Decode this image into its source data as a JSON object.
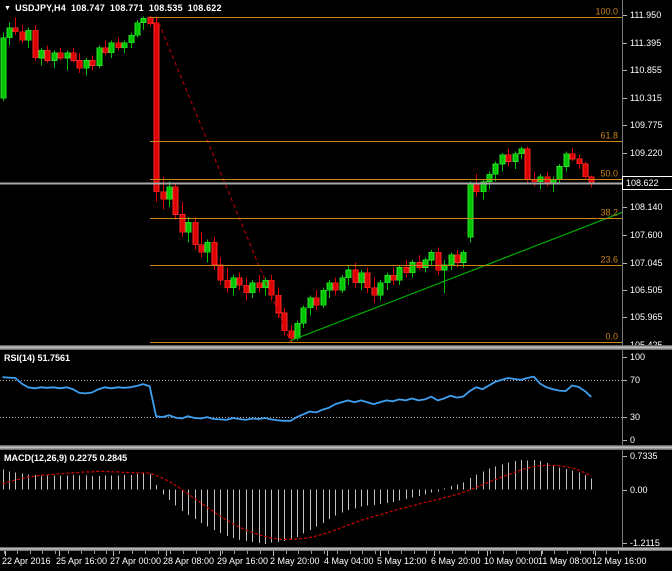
{
  "window": {
    "title": {
      "symbol_period": "USDJPY,H4",
      "open": "108.747",
      "high": "108.771",
      "low": "108.535",
      "close": "108.622"
    }
  },
  "price_scale": {
    "ticks": [
      "111.950",
      "111.395",
      "110.855",
      "110.315",
      "109.775",
      "109.220",
      "108.140",
      "107.600",
      "107.045",
      "106.505",
      "105.965",
      "105.425"
    ],
    "current_price": "108.622"
  },
  "time_scale": {
    "labels": [
      "22 Apr 2016",
      "25 Apr 16:00",
      "27 Apr 00:00",
      "28 Apr 08:00",
      "29 Apr 16:00",
      "2 May 20:00",
      "4 May 04:00",
      "5 May 12:00",
      "6 May 20:00",
      "10 May 00:00",
      "11 May 08:00",
      "12 May 16:00"
    ]
  },
  "panels": {
    "rsi": {
      "label": "RSI(14)",
      "value": "51.7561",
      "scale_ticks": [
        "100",
        "70",
        "30",
        "0"
      ],
      "level_lines": [
        70,
        30
      ]
    },
    "macd": {
      "label": "MACD(12,26,9)",
      "value_main": "0.2275",
      "value_signal": "0.2845",
      "scale_ticks": [
        "0.7335",
        "0.00",
        "-1.2115"
      ]
    }
  },
  "colors": {
    "background": "#000000",
    "bull": "#00c400",
    "bull_edge": "#2ee62e",
    "bear": "#dd0000",
    "bear_edge": "#ff2a2a",
    "fib": "#c8861b",
    "rsi_line": "#3f9ff0",
    "macd_histogram": "#c2c2c2",
    "macd_signal": "#d40000",
    "trendline": "#00a800",
    "bid_line": "#a8a8a8",
    "level_dotted": "#b0b0b0",
    "axis_text": "#ffffff"
  },
  "chart_data": {
    "type": "candlestick",
    "symbol": "USDJPY",
    "timeframe": "H4",
    "title": "USDJPY,H4 108.747 108.771 108.535 108.622",
    "y_range": [
      105.425,
      111.95
    ],
    "x_labels": [
      "22 Apr 2016",
      "25 Apr 16:00",
      "27 Apr 00:00",
      "28 Apr 08:00",
      "29 Apr 16:00",
      "2 May 20:00",
      "4 May 04:00",
      "5 May 12:00",
      "6 May 20:00",
      "10 May 00:00",
      "11 May 08:00",
      "12 May 16:00"
    ],
    "candles_ohlc": [
      [
        110.3,
        111.6,
        110.25,
        111.5
      ],
      [
        111.5,
        111.8,
        111.35,
        111.7
      ],
      [
        111.7,
        111.9,
        111.55,
        111.62
      ],
      [
        111.62,
        111.75,
        111.4,
        111.45
      ],
      [
        111.45,
        111.7,
        111.3,
        111.65
      ],
      [
        111.65,
        111.75,
        111.05,
        111.1
      ],
      [
        111.1,
        111.3,
        110.95,
        111.25
      ],
      [
        111.25,
        111.35,
        111.0,
        111.05
      ],
      [
        111.05,
        111.25,
        110.9,
        111.2
      ],
      [
        111.2,
        111.3,
        111.05,
        111.1
      ],
      [
        111.1,
        111.25,
        110.85,
        111.2
      ],
      [
        111.2,
        111.3,
        111.0,
        111.05
      ],
      [
        111.05,
        111.2,
        110.8,
        110.9
      ],
      [
        110.9,
        111.1,
        110.75,
        111.05
      ],
      [
        111.05,
        111.15,
        110.85,
        110.95
      ],
      [
        110.95,
        111.35,
        110.9,
        111.3
      ],
      [
        111.3,
        111.45,
        111.15,
        111.2
      ],
      [
        111.2,
        111.45,
        111.1,
        111.4
      ],
      [
        111.4,
        111.5,
        111.25,
        111.3
      ],
      [
        111.3,
        111.45,
        111.2,
        111.4
      ],
      [
        111.4,
        111.6,
        111.3,
        111.55
      ],
      [
        111.55,
        111.85,
        111.5,
        111.8
      ],
      [
        111.8,
        111.92,
        111.65,
        111.88
      ],
      [
        111.9,
        111.93,
        111.72,
        111.78
      ],
      [
        111.8,
        111.92,
        108.25,
        108.45
      ],
      [
        108.45,
        108.75,
        108.1,
        108.3
      ],
      [
        108.3,
        108.65,
        108.15,
        108.55
      ],
      [
        108.55,
        108.6,
        107.9,
        108.0
      ],
      [
        108.0,
        108.25,
        107.55,
        107.65
      ],
      [
        107.65,
        107.95,
        107.45,
        107.85
      ],
      [
        107.85,
        107.95,
        107.3,
        107.4
      ],
      [
        107.4,
        107.65,
        107.15,
        107.25
      ],
      [
        107.25,
        107.5,
        107.05,
        107.45
      ],
      [
        107.45,
        107.55,
        106.9,
        107.0
      ],
      [
        107.0,
        107.15,
        106.6,
        106.7
      ],
      [
        106.7,
        106.95,
        106.45,
        106.55
      ],
      [
        106.55,
        106.8,
        106.4,
        106.75
      ],
      [
        106.75,
        106.85,
        106.5,
        106.6
      ],
      [
        106.6,
        106.75,
        106.3,
        106.45
      ],
      [
        106.45,
        106.7,
        106.35,
        106.65
      ],
      [
        106.65,
        106.8,
        106.45,
        106.55
      ],
      [
        106.55,
        106.75,
        106.4,
        106.7
      ],
      [
        106.7,
        106.8,
        106.3,
        106.4
      ],
      [
        106.4,
        106.55,
        105.95,
        106.05
      ],
      [
        106.05,
        106.15,
        105.6,
        105.7
      ],
      [
        105.7,
        105.8,
        105.47,
        105.55
      ],
      [
        105.55,
        105.9,
        105.5,
        105.85
      ],
      [
        105.85,
        106.2,
        105.75,
        106.15
      ],
      [
        106.15,
        106.4,
        106.0,
        106.35
      ],
      [
        106.35,
        106.5,
        106.1,
        106.2
      ],
      [
        106.2,
        106.55,
        106.15,
        106.5
      ],
      [
        106.5,
        106.7,
        106.35,
        106.65
      ],
      [
        106.65,
        106.75,
        106.4,
        106.5
      ],
      [
        106.5,
        106.8,
        106.45,
        106.75
      ],
      [
        106.75,
        107.0,
        106.6,
        106.9
      ],
      [
        106.9,
        107.05,
        106.55,
        106.65
      ],
      [
        106.65,
        106.9,
        106.5,
        106.85
      ],
      [
        106.85,
        106.95,
        106.45,
        106.55
      ],
      [
        106.55,
        106.75,
        106.25,
        106.4
      ],
      [
        106.4,
        106.7,
        106.3,
        106.65
      ],
      [
        106.65,
        106.85,
        106.5,
        106.8
      ],
      [
        106.8,
        106.95,
        106.6,
        106.7
      ],
      [
        106.7,
        107.0,
        106.6,
        106.95
      ],
      [
        106.95,
        107.1,
        106.75,
        106.85
      ],
      [
        106.85,
        107.1,
        106.75,
        107.05
      ],
      [
        107.05,
        107.2,
        106.9,
        106.95
      ],
      [
        106.95,
        107.15,
        106.85,
        107.1
      ],
      [
        107.1,
        107.3,
        107.0,
        107.25
      ],
      [
        107.25,
        107.35,
        106.8,
        106.9
      ],
      [
        106.9,
        107.1,
        106.45,
        107.0
      ],
      [
        107.0,
        107.25,
        106.9,
        107.2
      ],
      [
        107.2,
        107.3,
        106.95,
        107.05
      ],
      [
        107.05,
        107.3,
        106.95,
        107.25
      ],
      [
        107.55,
        108.65,
        107.45,
        108.6
      ],
      [
        108.6,
        108.8,
        108.35,
        108.45
      ],
      [
        108.45,
        108.7,
        108.3,
        108.65
      ],
      [
        108.65,
        108.85,
        108.5,
        108.8
      ],
      [
        108.8,
        109.05,
        108.65,
        109.0
      ],
      [
        109.0,
        109.22,
        108.85,
        109.18
      ],
      [
        109.18,
        109.3,
        108.95,
        109.05
      ],
      [
        109.05,
        109.25,
        108.9,
        109.2
      ],
      [
        109.2,
        109.35,
        109.1,
        109.3
      ],
      [
        109.3,
        109.35,
        108.6,
        108.7
      ],
      [
        108.7,
        108.85,
        108.55,
        108.65
      ],
      [
        108.65,
        108.8,
        108.5,
        108.75
      ],
      [
        108.75,
        108.85,
        108.55,
        108.6
      ],
      [
        108.6,
        108.75,
        108.45,
        108.7
      ],
      [
        108.7,
        109.0,
        108.6,
        108.95
      ],
      [
        108.95,
        109.25,
        108.85,
        109.2
      ],
      [
        109.2,
        109.32,
        109.05,
        109.1
      ],
      [
        109.1,
        109.18,
        108.9,
        109.0
      ],
      [
        109.0,
        109.05,
        108.7,
        108.75
      ],
      [
        108.747,
        108.771,
        108.535,
        108.622
      ]
    ],
    "fibonacci": {
      "high": 111.92,
      "low": 105.47,
      "levels": [
        {
          "pct": 100,
          "label": "100.0"
        },
        {
          "pct": 61.8,
          "label": "61.8"
        },
        {
          "pct": 50,
          "label": "50.0"
        },
        {
          "pct": 38.2,
          "label": "38.2"
        },
        {
          "pct": 23.6,
          "label": "23.6"
        },
        {
          "pct": 0,
          "label": "0.0"
        }
      ],
      "diagonal": {
        "from_bar": 24,
        "from_price": 111.92,
        "to_bar": 45,
        "to_price": 105.47
      }
    },
    "trendline": {
      "from_bar": 45,
      "from_price": 105.5,
      "to_bar": 97,
      "to_price": 108.05
    },
    "bid_line_price": 108.622,
    "indicators": {
      "rsi": {
        "period": 14,
        "last": 51.7561,
        "overbought": 70,
        "oversold": 30,
        "range": [
          0,
          100
        ],
        "values": [
          73,
          72.5,
          72,
          66,
          62,
          61,
          62,
          61.5,
          62,
          61,
          62,
          60,
          56,
          55.5,
          56.5,
          60,
          62,
          61,
          62,
          61.5,
          62,
          63.5,
          65.5,
          63,
          31,
          30,
          32,
          29.5,
          28.5,
          31,
          29,
          28.5,
          30,
          28,
          27.5,
          27,
          29,
          28,
          27,
          28.5,
          28,
          29,
          27.5,
          26.5,
          26,
          26,
          30,
          33,
          36,
          35,
          38,
          40,
          44,
          46,
          48,
          46,
          48,
          46,
          44,
          46,
          48,
          47,
          49,
          48,
          50,
          48,
          49,
          52,
          48,
          50,
          53,
          51,
          52,
          58,
          62,
          60,
          64,
          68,
          70,
          72,
          71,
          70,
          72,
          73.5,
          66,
          62,
          60,
          58.5,
          58,
          64,
          62.5,
          58,
          51.76
        ]
      },
      "macd": {
        "fast": 12,
        "slow": 26,
        "signal_period": 9,
        "last_main": 0.2275,
        "last_signal": 0.2845,
        "pane_range": [
          -1.2115,
          0.7335
        ],
        "histogram": [
          0.42,
          0.38,
          0.36,
          0.34,
          0.32,
          0.31,
          0.3,
          0.3,
          0.29,
          0.3,
          0.3,
          0.31,
          0.3,
          0.29,
          0.28,
          0.28,
          0.29,
          0.3,
          0.3,
          0.31,
          0.31,
          0.33,
          0.35,
          0.33,
          0.1,
          -0.1,
          -0.22,
          -0.34,
          -0.45,
          -0.54,
          -0.62,
          -0.7,
          -0.78,
          -0.85,
          -0.92,
          -0.98,
          -1.02,
          -1.06,
          -1.08,
          -1.1,
          -1.13,
          -1.15,
          -1.12,
          -1.1,
          -1.08,
          -1.05,
          -1.0,
          -0.93,
          -0.85,
          -0.78,
          -0.7,
          -0.62,
          -0.55,
          -0.48,
          -0.43,
          -0.4,
          -0.36,
          -0.34,
          -0.33,
          -0.31,
          -0.28,
          -0.26,
          -0.23,
          -0.2,
          -0.17,
          -0.14,
          -0.1,
          -0.06,
          -0.04,
          0.02,
          0.07,
          0.11,
          0.15,
          0.24,
          0.32,
          0.38,
          0.44,
          0.48,
          0.53,
          0.57,
          0.6,
          0.62,
          0.61,
          0.62,
          0.6,
          0.56,
          0.51,
          0.46,
          0.43,
          0.4,
          0.36,
          0.31,
          0.2275
        ],
        "signal": [
          0.12,
          0.16,
          0.2,
          0.23,
          0.26,
          0.28,
          0.3,
          0.31,
          0.32,
          0.33,
          0.34,
          0.35,
          0.36,
          0.37,
          0.37,
          0.38,
          0.38,
          0.37,
          0.37,
          0.36,
          0.36,
          0.35,
          0.35,
          0.34,
          0.3,
          0.24,
          0.17,
          0.09,
          0.0,
          -0.09,
          -0.19,
          -0.28,
          -0.38,
          -0.47,
          -0.56,
          -0.64,
          -0.72,
          -0.79,
          -0.85,
          -0.9,
          -0.95,
          -0.99,
          -1.02,
          -1.04,
          -1.05,
          -1.05,
          -1.04,
          -1.03,
          -1.01,
          -0.98,
          -0.94,
          -0.9,
          -0.85,
          -0.8,
          -0.75,
          -0.7,
          -0.65,
          -0.61,
          -0.57,
          -0.53,
          -0.49,
          -0.45,
          -0.41,
          -0.38,
          -0.34,
          -0.31,
          -0.27,
          -0.24,
          -0.21,
          -0.17,
          -0.14,
          -0.1,
          -0.06,
          -0.01,
          0.04,
          0.1,
          0.16,
          0.21,
          0.26,
          0.31,
          0.36,
          0.41,
          0.45,
          0.48,
          0.5,
          0.51,
          0.51,
          0.5,
          0.48,
          0.45,
          0.41,
          0.35,
          0.2845
        ]
      }
    }
  }
}
